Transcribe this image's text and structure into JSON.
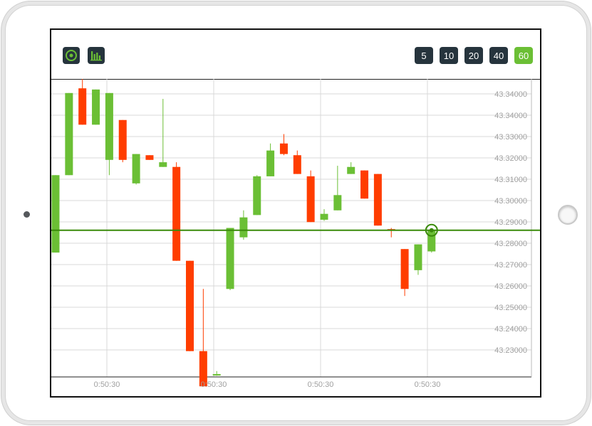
{
  "toolbar": {
    "buttons": [
      {
        "name": "target-icon"
      },
      {
        "name": "bar-chart-icon"
      }
    ],
    "timeframes": [
      {
        "label": "5",
        "active": false
      },
      {
        "label": "10",
        "active": false
      },
      {
        "label": "20",
        "active": false
      },
      {
        "label": "40",
        "active": false
      },
      {
        "label": "60",
        "active": true
      }
    ]
  },
  "colors": {
    "up": "#6bbf35",
    "down": "#ff3d00",
    "price_line": "#3a8a0a",
    "grid": "#d9d9d9",
    "axis_text": "#a0a0a0",
    "button_bg": "#26343d",
    "button_active": "#6bbf35"
  },
  "chart_data": {
    "type": "candlestick",
    "y_tick_labels": [
      "43.34000",
      "43.34000",
      "43.33000",
      "43.32000",
      "43.31000",
      "43.30000",
      "43.29000",
      "43.28000",
      "43.27000",
      "43.26000",
      "43.25000",
      "43.24000",
      "43.23000"
    ],
    "x_tick_labels": [
      "0:50:30",
      "0:50:30",
      "0:50:30",
      "0:50:30"
    ],
    "ylim": [
      43.22,
      43.347
    ],
    "current_price": 43.2825,
    "grid": true,
    "candles": [
      {
        "o": 43.273,
        "h": 43.306,
        "l": 43.273,
        "c": 43.306
      },
      {
        "o": 43.306,
        "h": 43.341,
        "l": 43.306,
        "c": 43.341
      },
      {
        "o": 43.343,
        "h": 43.3535,
        "l": 43.3275,
        "c": 43.3275
      },
      {
        "o": 43.3275,
        "h": 43.3425,
        "l": 43.3275,
        "c": 43.3425
      },
      {
        "o": 43.3125,
        "h": 43.341,
        "l": 43.306,
        "c": 43.341
      },
      {
        "o": 43.3295,
        "h": 43.3295,
        "l": 43.3115,
        "c": 43.3125
      },
      {
        "o": 43.3025,
        "h": 43.315,
        "l": 43.302,
        "c": 43.315
      },
      {
        "o": 43.3145,
        "h": 43.3145,
        "l": 43.3125,
        "c": 43.3125
      },
      {
        "o": 43.3095,
        "h": 43.3385,
        "l": 43.3095,
        "c": 43.3115
      },
      {
        "o": 43.3095,
        "h": 43.3115,
        "l": 43.2695,
        "c": 43.2695
      },
      {
        "o": 43.2695,
        "h": 43.2695,
        "l": 43.231,
        "c": 43.231
      },
      {
        "o": 43.231,
        "h": 43.2575,
        "l": 43.216,
        "c": 43.216
      },
      {
        "o": 43.2212,
        "h": 43.2225,
        "l": 43.2205,
        "c": 43.2212
      },
      {
        "o": 43.2575,
        "h": 43.2835,
        "l": 43.257,
        "c": 43.2835
      },
      {
        "o": 43.2795,
        "h": 43.291,
        "l": 43.2785,
        "c": 43.288
      },
      {
        "o": 43.289,
        "h": 43.306,
        "l": 43.289,
        "c": 43.3055
      },
      {
        "o": 43.3055,
        "h": 43.3195,
        "l": 43.3055,
        "c": 43.3165
      },
      {
        "o": 43.3195,
        "h": 43.3235,
        "l": 43.3145,
        "c": 43.315
      },
      {
        "o": 43.3145,
        "h": 43.3165,
        "l": 43.3065,
        "c": 43.3065
      },
      {
        "o": 43.3055,
        "h": 43.308,
        "l": 43.286,
        "c": 43.286
      },
      {
        "o": 43.287,
        "h": 43.2915,
        "l": 43.2865,
        "c": 43.2895
      },
      {
        "o": 43.291,
        "h": 43.31,
        "l": 43.291,
        "c": 43.2975
      },
      {
        "o": 43.3065,
        "h": 43.3115,
        "l": 43.3065,
        "c": 43.3095
      },
      {
        "o": 43.308,
        "h": 43.308,
        "l": 43.296,
        "c": 43.296
      },
      {
        "o": 43.3065,
        "h": 43.3065,
        "l": 43.2845,
        "c": 43.2845
      },
      {
        "o": 43.283,
        "h": 43.2835,
        "l": 43.2795,
        "c": 43.2825
      },
      {
        "o": 43.2745,
        "h": 43.2745,
        "l": 43.2545,
        "c": 43.2575
      },
      {
        "o": 43.2655,
        "h": 43.2765,
        "l": 43.2635,
        "c": 43.2765
      },
      {
        "o": 43.2735,
        "h": 43.2825,
        "l": 43.273,
        "c": 43.2825
      }
    ]
  }
}
